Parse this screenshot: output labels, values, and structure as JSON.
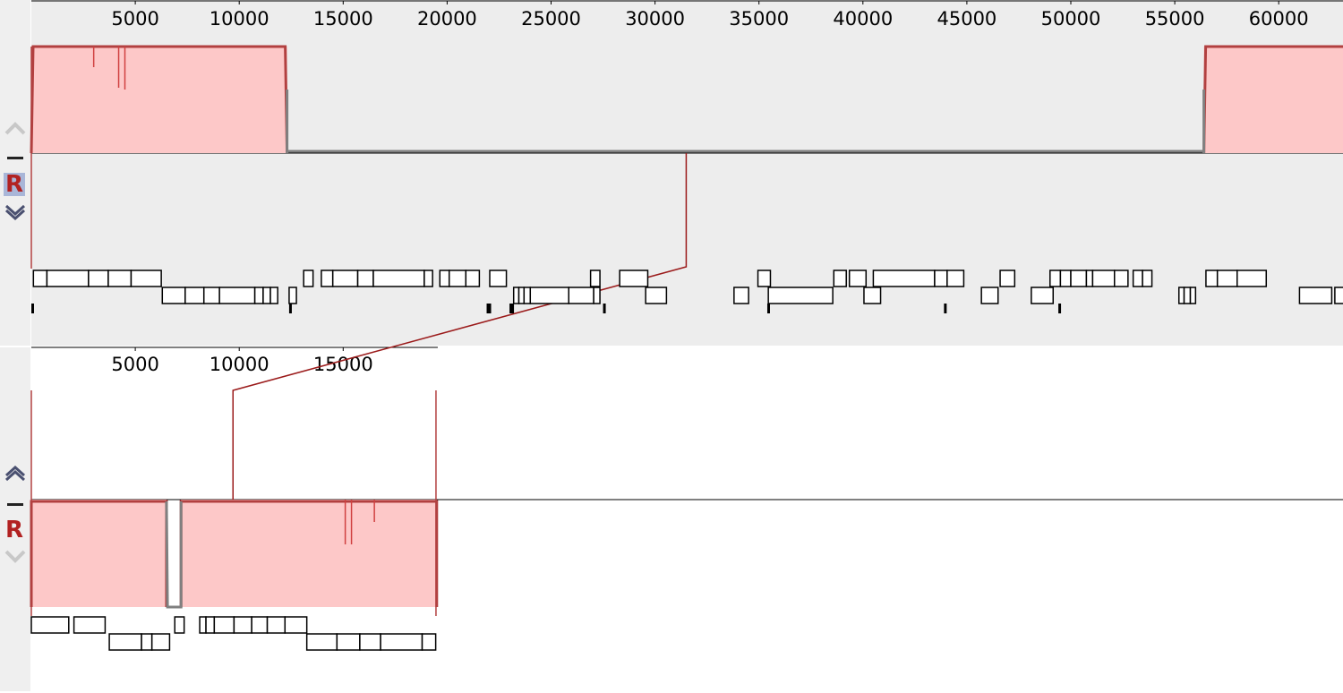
{
  "colors": {
    "panel_bg": "#ededed",
    "lcb_fill": "#fdc8c8",
    "lcb_stroke": "#b24040",
    "connector": "#9b1b1b",
    "low_sim": "#808080",
    "gene_stroke": "#000000"
  },
  "top_genome": {
    "ruler_ticks": [
      "5000",
      "10000",
      "15000",
      "20000",
      "25000",
      "30000",
      "35000",
      "40000",
      "45000",
      "50000",
      "55000",
      "60000"
    ],
    "ruler_tick_values": [
      5000,
      10000,
      15000,
      20000,
      25000,
      30000,
      35000,
      40000,
      45000,
      50000,
      55000,
      60000
    ],
    "length": 63500,
    "controls": {
      "up": "chevron-up-icon",
      "minus": "minus-icon",
      "ref_label": "R",
      "down": "chevron-down-icon",
      "reference_selected": true
    },
    "lcbs": [
      {
        "start": 0,
        "end": 12300,
        "strand": "forward"
      },
      {
        "start": 56400,
        "end": 63300,
        "strand": "forward"
      }
    ],
    "feature_row1": [
      [
        100,
        750
      ],
      [
        750,
        2750
      ],
      [
        2750,
        3700
      ],
      [
        3700,
        4800
      ],
      [
        4800,
        6250
      ],
      [
        13100,
        13550
      ],
      [
        13950,
        14500
      ],
      [
        14500,
        15700
      ],
      [
        15700,
        16450
      ],
      [
        16450,
        18900
      ],
      [
        18900,
        19300
      ],
      [
        19650,
        20100
      ],
      [
        20100,
        20900
      ],
      [
        20900,
        21550
      ],
      [
        22050,
        22850
      ],
      [
        26900,
        27350
      ],
      [
        28300,
        29650
      ],
      [
        34950,
        35550
      ],
      [
        38600,
        39200
      ],
      [
        39350,
        40150
      ],
      [
        40500,
        43450
      ],
      [
        43450,
        44050
      ],
      [
        44050,
        44850
      ],
      [
        46600,
        47300
      ],
      [
        49000,
        49500
      ],
      [
        49500,
        50000
      ],
      [
        50000,
        50750
      ],
      [
        50750,
        51050
      ],
      [
        51050,
        52100
      ],
      [
        52100,
        52750
      ],
      [
        53000,
        53450
      ],
      [
        53450,
        53900
      ],
      [
        56500,
        57050
      ],
      [
        57050,
        58000
      ],
      [
        58000,
        59400
      ]
    ],
    "feature_row2": [
      [
        6300,
        7400
      ],
      [
        7400,
        8300
      ],
      [
        8300,
        9050
      ],
      [
        9050,
        10750
      ],
      [
        10750,
        11150
      ],
      [
        11150,
        11500
      ],
      [
        11500,
        11850
      ],
      [
        12400,
        12750
      ],
      [
        23200,
        23450
      ],
      [
        23450,
        23700
      ],
      [
        23700,
        24000
      ],
      [
        24000,
        25850
      ],
      [
        25850,
        27050
      ],
      [
        27050,
        27350
      ],
      [
        29550,
        30550
      ],
      [
        33800,
        34500
      ],
      [
        35450,
        38550
      ],
      [
        40050,
        40850
      ],
      [
        45700,
        46500
      ],
      [
        48100,
        49150
      ],
      [
        55200,
        55450
      ],
      [
        55450,
        55750
      ],
      [
        55750,
        56000
      ],
      [
        61000,
        62550
      ],
      [
        62700,
        64600
      ]
    ],
    "tick_marks": [
      0,
      12400,
      21900,
      23000,
      27500,
      35400,
      43900,
      49400,
      63300
    ]
  },
  "bottom_genome": {
    "ruler_ticks": [
      "5000",
      "10000",
      "15000"
    ],
    "ruler_tick_values": [
      5000,
      10000,
      15000
    ],
    "length": 19550,
    "controls": {
      "up": "chevron-up-icon",
      "minus": "minus-icon",
      "ref_label": "R",
      "down": "chevron-down-icon",
      "reference_selected": false
    },
    "lcbs": [
      {
        "start": 0,
        "end": 6500,
        "strand": "reverse"
      },
      {
        "start": 7200,
        "end": 19500,
        "strand": "reverse"
      }
    ],
    "feature_row1": [
      [
        0,
        1800
      ],
      [
        2050,
        3550
      ],
      [
        6900,
        7350
      ],
      [
        8100,
        8400
      ],
      [
        8400,
        8800
      ],
      [
        8800,
        9750
      ],
      [
        9750,
        10600
      ],
      [
        10600,
        11350
      ],
      [
        11350,
        12200
      ],
      [
        12200,
        13250
      ]
    ],
    "feature_row2": [
      [
        3750,
        5300
      ],
      [
        5300,
        5800
      ],
      [
        5800,
        6650
      ],
      [
        13250,
        14700
      ],
      [
        14700,
        15800
      ],
      [
        15800,
        16800
      ],
      [
        16800,
        18800
      ],
      [
        18800,
        19450
      ]
    ]
  },
  "connector": {
    "top_position": 31500,
    "bottom_position": 9700
  }
}
